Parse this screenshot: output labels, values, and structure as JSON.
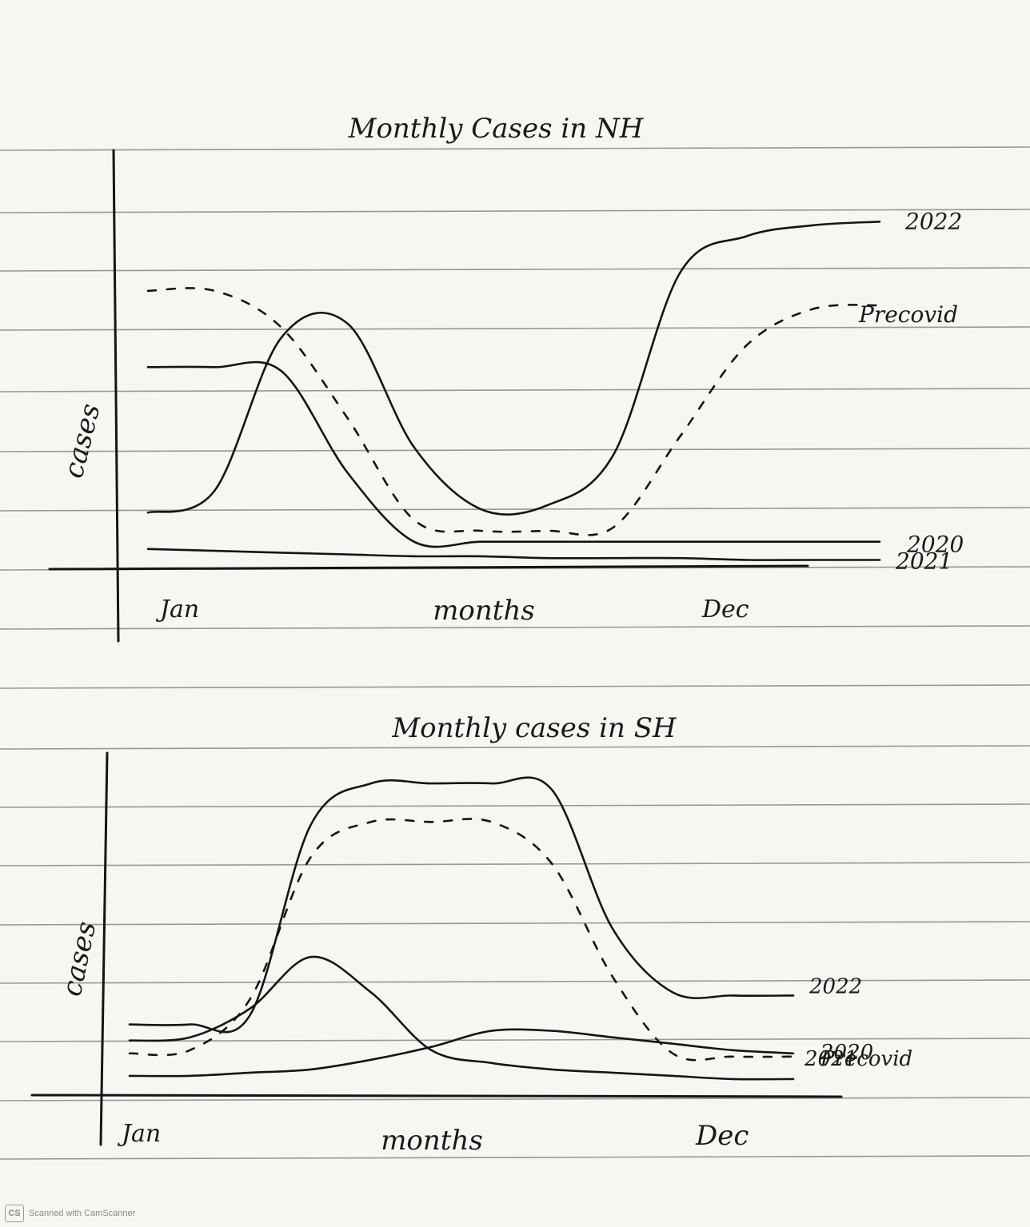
{
  "chart_data": [
    {
      "type": "line",
      "title": "Monthly Cases in NH",
      "xlabel": "months",
      "ylabel": "cases",
      "x_tick_labels": [
        "Jan",
        "Dec"
      ],
      "x": [
        1,
        2,
        3,
        4,
        5,
        6,
        7,
        8,
        9,
        10,
        11,
        12
      ],
      "ylim": [
        0,
        10
      ],
      "grid": false,
      "legend": "line-end labels on right",
      "series": [
        {
          "name": "2022",
          "style": "solid",
          "values": [
            1.4,
            2.0,
            6.2,
            6.6,
            3.2,
            1.5,
            1.6,
            3.0,
            8.0,
            9.0,
            9.3,
            9.4
          ]
        },
        {
          "name": "Precovid",
          "style": "dashed",
          "values": [
            7.5,
            7.5,
            6.5,
            4.0,
            1.2,
            0.9,
            0.9,
            1.0,
            3.5,
            6.0,
            7.0,
            7.1
          ]
        },
        {
          "name": "2020",
          "style": "solid",
          "values": [
            5.4,
            5.4,
            5.3,
            2.5,
            0.6,
            0.6,
            0.6,
            0.6,
            0.6,
            0.6,
            0.6,
            0.6
          ]
        },
        {
          "name": "2021",
          "style": "solid",
          "values": [
            0.4,
            0.35,
            0.3,
            0.25,
            0.2,
            0.2,
            0.15,
            0.15,
            0.15,
            0.1,
            0.1,
            0.1
          ]
        }
      ]
    },
    {
      "type": "line",
      "title": "Monthly cases in SH",
      "xlabel": "months",
      "ylabel": "cases",
      "x_tick_labels": [
        "Jan",
        "Dec"
      ],
      "x": [
        1,
        2,
        3,
        4,
        5,
        6,
        7,
        8,
        9,
        10,
        11,
        12
      ],
      "ylim": [
        0,
        10
      ],
      "grid": false,
      "legend": "line-end labels on right",
      "series": [
        {
          "name": "2022",
          "style": "solid",
          "values": [
            2.0,
            2.0,
            2.3,
            8.2,
            9.5,
            9.5,
            9.5,
            9.3,
            5.0,
            3.0,
            2.9,
            2.9
          ]
        },
        {
          "name": "2021",
          "style": "solid",
          "values": [
            1.5,
            1.6,
            2.5,
            4.1,
            3.0,
            1.2,
            0.8,
            0.6,
            0.5,
            0.4,
            0.3,
            0.3
          ]
        },
        {
          "name": "Precovid",
          "style": "dashed",
          "values": [
            1.1,
            1.2,
            2.8,
            7.2,
            8.3,
            8.3,
            8.3,
            7.0,
            3.5,
            1.1,
            1.0,
            1.0
          ]
        },
        {
          "name": "2020",
          "style": "solid",
          "values": [
            0.4,
            0.4,
            0.5,
            0.6,
            0.9,
            1.3,
            1.8,
            1.8,
            1.6,
            1.4,
            1.2,
            1.1
          ]
        }
      ]
    }
  ],
  "footer": {
    "badge": "CS",
    "text": "Scanned with CamScanner"
  }
}
